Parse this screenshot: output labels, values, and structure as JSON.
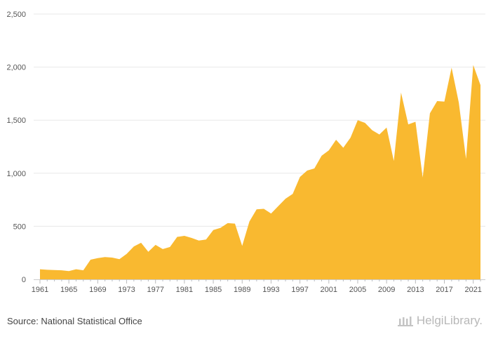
{
  "footer": {
    "source": "Source: National Statistical Office",
    "brand": "HelgiLibrary."
  },
  "chart_data": {
    "type": "area",
    "title": "",
    "xlabel": "",
    "ylabel": "",
    "xlim": [
      1961,
      2022
    ],
    "ylim": [
      0,
      2500
    ],
    "yticks": [
      0,
      500,
      1000,
      1500,
      2000,
      2500
    ],
    "ytick_labels": [
      "0",
      "500",
      "1,000",
      "1,500",
      "2,000",
      "2,500"
    ],
    "xticks": [
      1961,
      1965,
      1969,
      1973,
      1977,
      1981,
      1985,
      1989,
      1993,
      1997,
      2001,
      2005,
      2009,
      2013,
      2017,
      2021
    ],
    "grid": "horizontal",
    "color": "#f9b930",
    "series": [
      {
        "x": [
          1961,
          1962,
          1963,
          1964,
          1965,
          1966,
          1967,
          1968,
          1969,
          1970,
          1971,
          1972,
          1973,
          1974,
          1975,
          1976,
          1977,
          1978,
          1979,
          1980,
          1981,
          1982,
          1983,
          1984,
          1985,
          1986,
          1987,
          1988,
          1989,
          1990,
          1991,
          1992,
          1993,
          1994,
          1995,
          1996,
          1997,
          1998,
          1999,
          2000,
          2001,
          2002,
          2003,
          2004,
          2005,
          2006,
          2007,
          2008,
          2009,
          2010,
          2011,
          2012,
          2013,
          2014,
          2015,
          2016,
          2017,
          2018,
          2019,
          2020,
          2021,
          2022
        ],
        "values": [
          95,
          90,
          88,
          85,
          78,
          95,
          85,
          185,
          200,
          210,
          205,
          190,
          240,
          310,
          345,
          260,
          325,
          285,
          305,
          400,
          410,
          390,
          365,
          375,
          465,
          485,
          530,
          525,
          315,
          545,
          660,
          665,
          620,
          690,
          760,
          805,
          965,
          1025,
          1045,
          1165,
          1215,
          1315,
          1240,
          1335,
          1500,
          1475,
          1405,
          1365,
          1430,
          1115,
          1760,
          1460,
          1485,
          960,
          1565,
          1680,
          1675,
          1995,
          1665,
          1135,
          2020,
          1830
        ]
      }
    ]
  }
}
